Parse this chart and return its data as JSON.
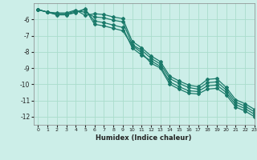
{
  "xlabel": "Humidex (Indice chaleur)",
  "background_color": "#cceee8",
  "grid_color": "#aaddcc",
  "line_color": "#1a7a6a",
  "xlim": [
    -0.5,
    23
  ],
  "ylim": [
    -12.5,
    -5.0
  ],
  "yticks": [
    -12,
    -11,
    -10,
    -9,
    -8,
    -7,
    -6
  ],
  "xticks": [
    0,
    1,
    2,
    3,
    4,
    5,
    6,
    7,
    8,
    9,
    10,
    11,
    12,
    13,
    14,
    15,
    16,
    17,
    18,
    19,
    20,
    21,
    22,
    23
  ],
  "line1_x": [
    0,
    1,
    2,
    3,
    4,
    5,
    6,
    7,
    8,
    9,
    10,
    11,
    12,
    13,
    14,
    15,
    16,
    17,
    18,
    19,
    20,
    21,
    22,
    23
  ],
  "line1_y": [
    -5.4,
    -5.55,
    -5.7,
    -5.7,
    -5.55,
    -5.35,
    -6.3,
    -6.4,
    -6.55,
    -6.7,
    -7.6,
    -8.05,
    -8.7,
    -9.0,
    -10.0,
    -10.3,
    -10.55,
    -10.6,
    -10.3,
    -10.25,
    -10.65,
    -11.4,
    -11.65,
    -12.0
  ],
  "line2_x": [
    0,
    1,
    2,
    3,
    4,
    5,
    6,
    7,
    8,
    9,
    10,
    11,
    12,
    13,
    14,
    15,
    16,
    17,
    18,
    19,
    20,
    21,
    22,
    23
  ],
  "line2_y": [
    -5.4,
    -5.55,
    -5.72,
    -5.72,
    -5.58,
    -5.38,
    -6.1,
    -6.2,
    -6.35,
    -6.5,
    -7.75,
    -8.2,
    -8.55,
    -8.9,
    -9.85,
    -10.15,
    -10.4,
    -10.45,
    -10.1,
    -10.05,
    -10.5,
    -11.25,
    -11.5,
    -11.85
  ],
  "line3_x": [
    0,
    1,
    2,
    3,
    4,
    5,
    6,
    7,
    8,
    9,
    10,
    11,
    12,
    13,
    14,
    15,
    16,
    17,
    18,
    19,
    20,
    21,
    22,
    23
  ],
  "line3_y": [
    -5.4,
    -5.55,
    -5.65,
    -5.65,
    -5.48,
    -5.55,
    -5.85,
    -5.9,
    -6.05,
    -6.15,
    -7.55,
    -7.9,
    -8.4,
    -8.75,
    -9.65,
    -9.95,
    -10.2,
    -10.3,
    -9.9,
    -9.85,
    -10.35,
    -11.1,
    -11.35,
    -11.7
  ],
  "line4_x": [
    0,
    1,
    2,
    3,
    4,
    5,
    6,
    7,
    8,
    9,
    10,
    11,
    12,
    13,
    14,
    15,
    16,
    17,
    18,
    19,
    20,
    21,
    22,
    23
  ],
  "line4_y": [
    -5.4,
    -5.55,
    -5.6,
    -5.6,
    -5.42,
    -5.75,
    -5.65,
    -5.7,
    -5.85,
    -5.95,
    -7.35,
    -7.75,
    -8.25,
    -8.6,
    -9.5,
    -9.8,
    -10.05,
    -10.15,
    -9.7,
    -9.65,
    -10.2,
    -10.95,
    -11.2,
    -11.55
  ]
}
